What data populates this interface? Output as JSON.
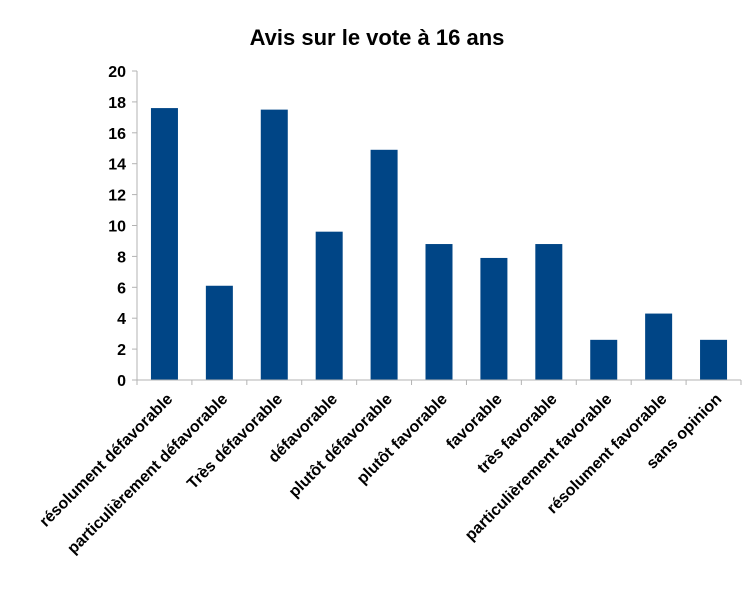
{
  "chart_data": {
    "type": "bar",
    "title": "Avis sur le vote à 16 ans",
    "xlabel": "",
    "ylabel": "",
    "ylim": [
      0,
      20
    ],
    "yticks": [
      0,
      2,
      4,
      6,
      8,
      10,
      12,
      14,
      16,
      18,
      20
    ],
    "grid": false,
    "legend": "none",
    "bar_color": "#004586",
    "categories": [
      "résolument défavorable",
      "particulièrement défavorable",
      "Très défavorable",
      "défavorable",
      "plutôt défavorable",
      "plutôt favorable",
      "favorable",
      "très favorable",
      "particulièrement favorable",
      "résolument favorable",
      "sans opinion"
    ],
    "values": [
      17.6,
      6.1,
      17.5,
      9.6,
      14.9,
      8.8,
      7.9,
      8.8,
      2.6,
      4.3,
      2.6
    ]
  }
}
